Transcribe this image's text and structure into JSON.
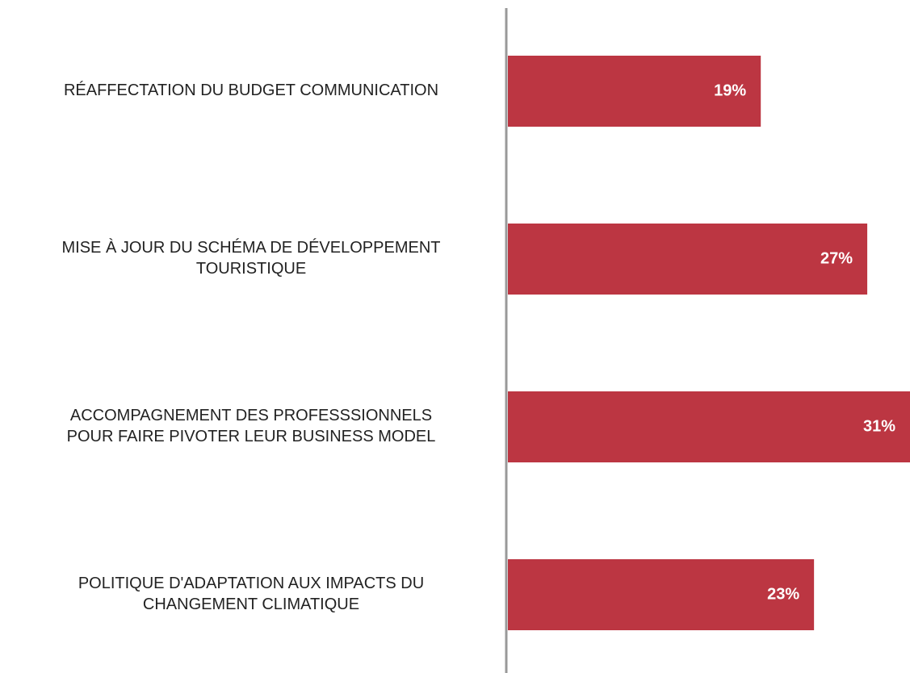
{
  "chart_data": {
    "type": "barh",
    "categories": [
      "RÉAFFECTATION DU BUDGET COMMUNICATION",
      "MISE À JOUR DU SCHÉMA DE DÉVELOPPEMENT\nTOURISTIQUE",
      "ACCOMPAGNEMENT DES PROFESSSIONNELS\nPOUR FAIRE PIVOTER LEUR BUSINESS MODEL",
      "POLITIQUE D'ADAPTATION AUX IMPACTS DU\nCHANGEMENT CLIMATIQUE"
    ],
    "values": [
      19,
      27,
      31,
      23
    ],
    "value_labels": [
      "19%",
      "27%",
      "31%",
      "23%"
    ],
    "color": "#bc3642"
  }
}
